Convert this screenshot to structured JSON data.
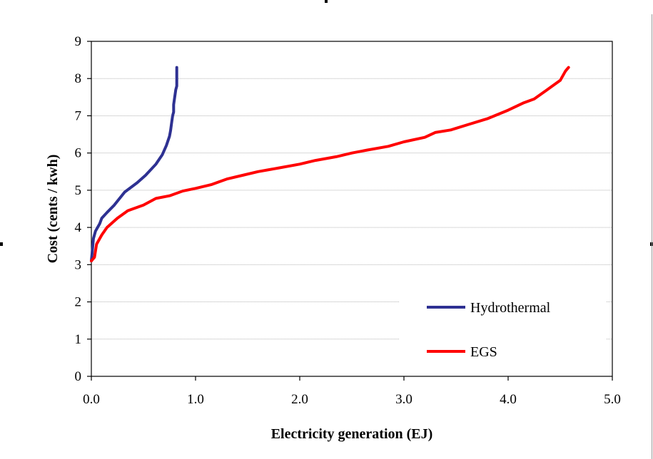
{
  "chart_data": {
    "type": "line",
    "title": "",
    "xlabel": "Electricity generation (EJ)",
    "ylabel": "Cost (cents / kwh)",
    "xlim": [
      0,
      5
    ],
    "ylim": [
      0,
      9
    ],
    "x_ticks": [
      "0.0",
      "1.0",
      "2.0",
      "3.0",
      "4.0",
      "5.0"
    ],
    "y_ticks": [
      "0",
      "1",
      "2",
      "3",
      "4",
      "5",
      "6",
      "7",
      "8",
      "9"
    ],
    "grid": true,
    "legend_position": "bottom-right",
    "series": [
      {
        "name": "Hydrothermal",
        "color": "#2E3192",
        "points": [
          [
            0.0,
            3.1
          ],
          [
            0.01,
            3.4
          ],
          [
            0.02,
            3.7
          ],
          [
            0.04,
            3.9
          ],
          [
            0.08,
            4.1
          ],
          [
            0.1,
            4.25
          ],
          [
            0.15,
            4.4
          ],
          [
            0.22,
            4.6
          ],
          [
            0.32,
            4.95
          ],
          [
            0.44,
            5.2
          ],
          [
            0.52,
            5.4
          ],
          [
            0.62,
            5.7
          ],
          [
            0.68,
            5.95
          ],
          [
            0.72,
            6.2
          ],
          [
            0.75,
            6.45
          ],
          [
            0.76,
            6.6
          ],
          [
            0.77,
            6.8
          ],
          [
            0.78,
            7.0
          ],
          [
            0.79,
            7.1
          ],
          [
            0.79,
            7.3
          ],
          [
            0.8,
            7.5
          ],
          [
            0.81,
            7.7
          ],
          [
            0.82,
            7.8
          ],
          [
            0.82,
            8.3
          ]
        ]
      },
      {
        "name": "EGS",
        "color": "#FF0000",
        "points": [
          [
            0.0,
            3.1
          ],
          [
            0.03,
            3.2
          ],
          [
            0.05,
            3.55
          ],
          [
            0.1,
            3.8
          ],
          [
            0.15,
            4.0
          ],
          [
            0.25,
            4.25
          ],
          [
            0.35,
            4.45
          ],
          [
            0.5,
            4.6
          ],
          [
            0.62,
            4.78
          ],
          [
            0.75,
            4.85
          ],
          [
            0.88,
            4.98
          ],
          [
            1.0,
            5.05
          ],
          [
            1.15,
            5.15
          ],
          [
            1.3,
            5.3
          ],
          [
            1.45,
            5.4
          ],
          [
            1.6,
            5.5
          ],
          [
            1.8,
            5.6
          ],
          [
            2.0,
            5.7
          ],
          [
            2.15,
            5.8
          ],
          [
            2.35,
            5.9
          ],
          [
            2.5,
            6.0
          ],
          [
            2.65,
            6.08
          ],
          [
            2.85,
            6.18
          ],
          [
            3.0,
            6.3
          ],
          [
            3.2,
            6.42
          ],
          [
            3.3,
            6.55
          ],
          [
            3.45,
            6.62
          ],
          [
            3.6,
            6.75
          ],
          [
            3.8,
            6.92
          ],
          [
            4.0,
            7.15
          ],
          [
            4.15,
            7.35
          ],
          [
            4.25,
            7.45
          ],
          [
            4.4,
            7.75
          ],
          [
            4.5,
            7.95
          ],
          [
            4.55,
            8.2
          ],
          [
            4.58,
            8.3
          ]
        ]
      }
    ]
  }
}
